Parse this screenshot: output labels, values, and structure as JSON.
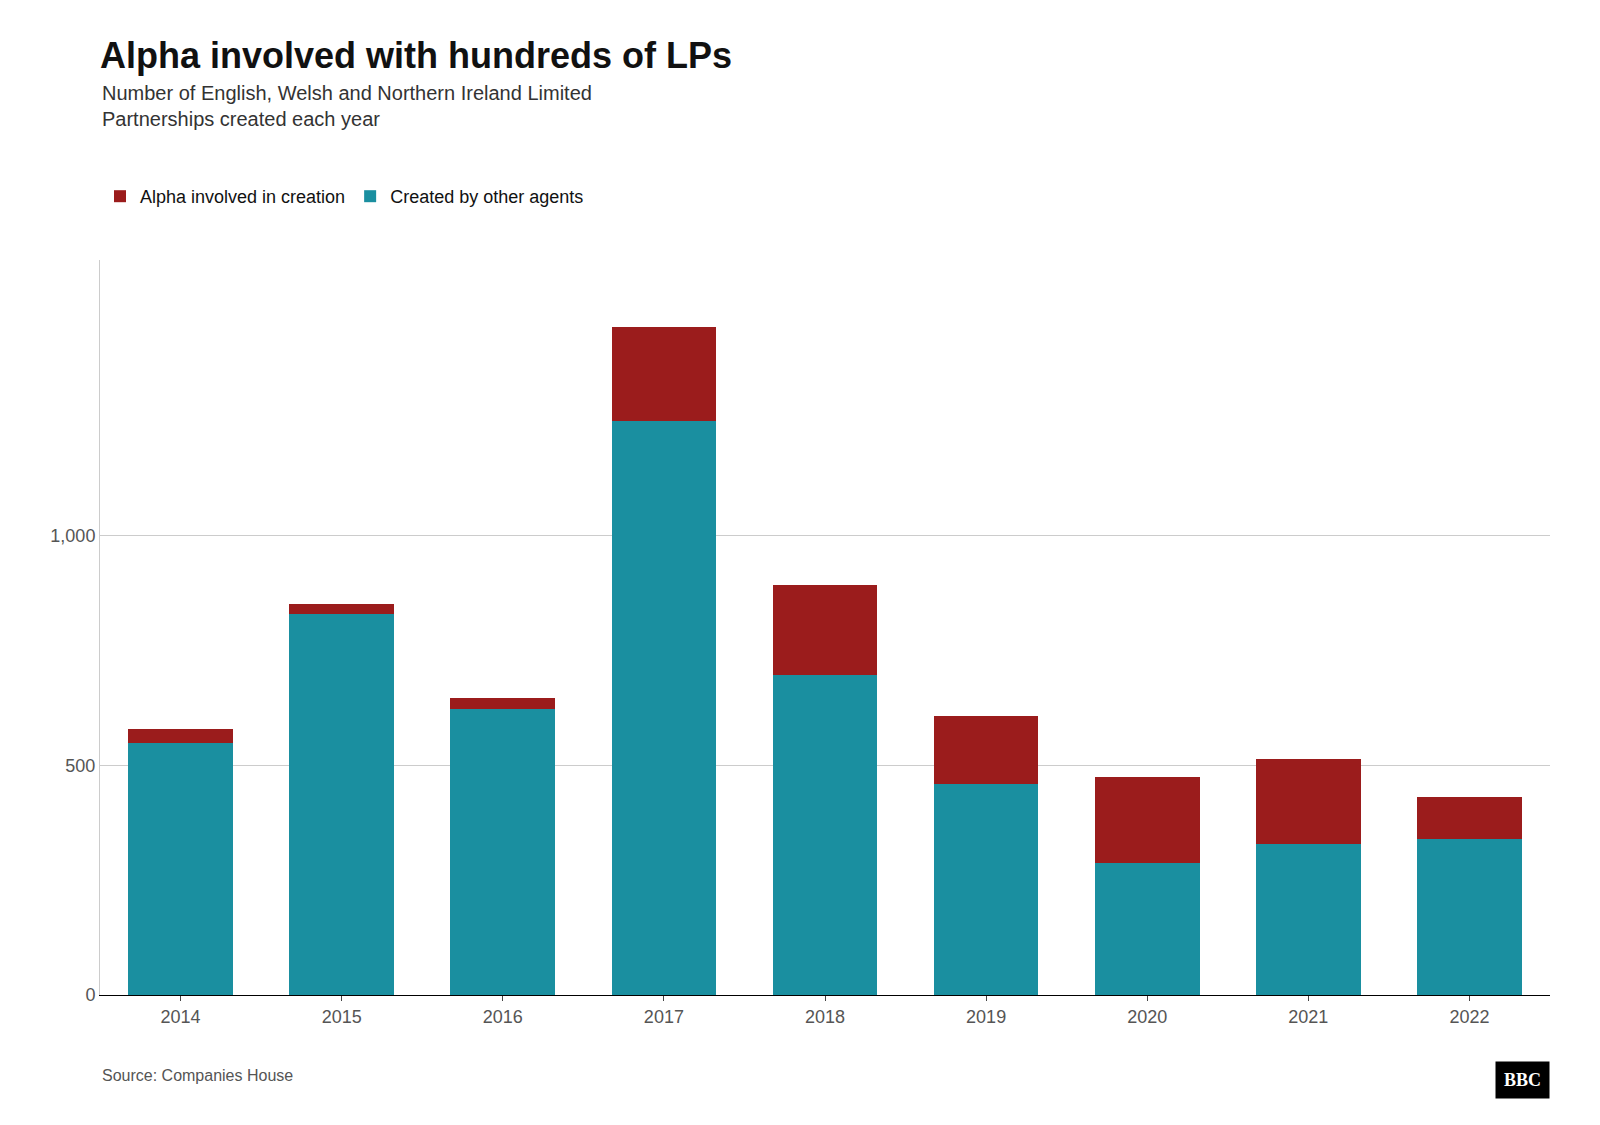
{
  "chart_data": {
    "type": "bar",
    "stacked": true,
    "title": "Alpha involved with hundreds of LPs",
    "subtitle": "Number of English, Welsh and Northern Ireland Limited\nPartnerships created each year",
    "categories": [
      "2014",
      "2015",
      "2016",
      "2017",
      "2018",
      "2019",
      "2020",
      "2021",
      "2022"
    ],
    "series": [
      {
        "name": "Created by other agents",
        "color": "#1a8fa0",
        "values": [
          548,
          830,
          622,
          1250,
          697,
          460,
          288,
          328,
          340
        ]
      },
      {
        "name": "Alpha involved in creation",
        "color": "#9b1c1c",
        "values": [
          30,
          22,
          25,
          205,
          195,
          148,
          187,
          185,
          92
        ]
      }
    ],
    "ylim": [
      0,
      1600
    ],
    "yticks": [
      0,
      500,
      {
        "value": 1000,
        "label": "1,000"
      }
    ],
    "grid": true,
    "legend": "upper left",
    "source": "Source: Companies House",
    "annotations": [
      "BBC"
    ]
  }
}
